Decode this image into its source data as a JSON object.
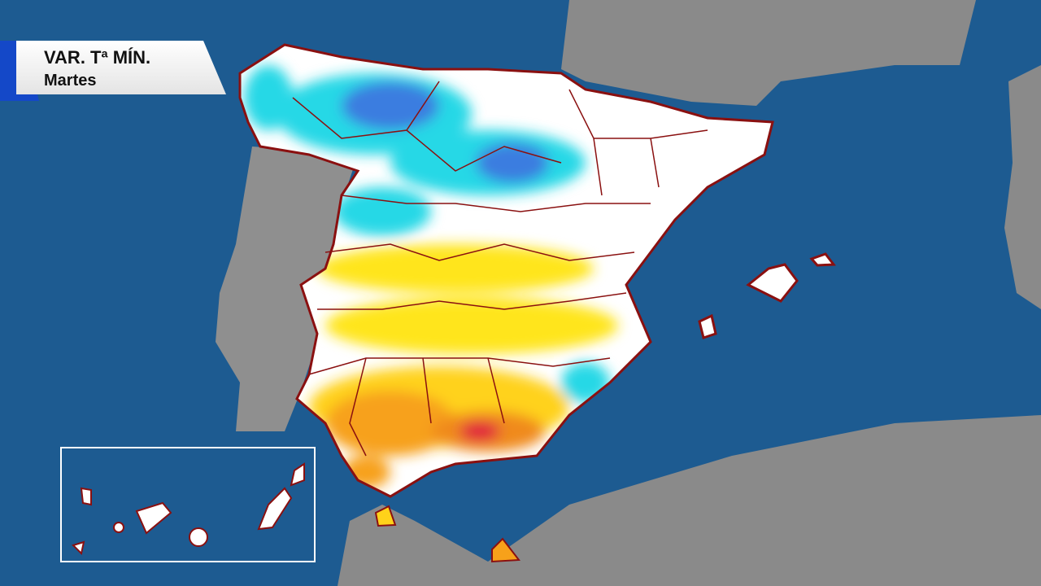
{
  "title": {
    "line1": "VAR. Tª MÍN.",
    "line2": "Martes"
  }
}
